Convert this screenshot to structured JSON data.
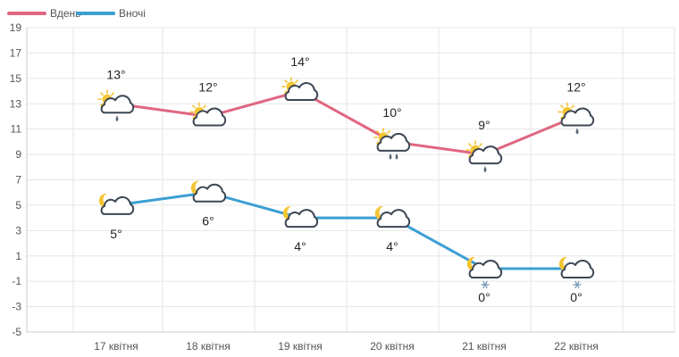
{
  "chart_data": {
    "type": "line",
    "categories": [
      "17 квітня",
      "18 квітня",
      "19 квітня",
      "20 квітня",
      "21 квітня",
      "22 квітня"
    ],
    "ylim": [
      -5,
      19
    ],
    "yticks": [
      "19",
      "17",
      "15",
      "13",
      "11",
      "9",
      "7",
      "5",
      "3",
      "1",
      "-1",
      "-3",
      "-5"
    ],
    "grid": true,
    "legend_position": "top-left",
    "series": [
      {
        "name": "Вдень",
        "color": "#e06680",
        "values": [
          13,
          12,
          14,
          10,
          9,
          12
        ],
        "labels": [
          "13°",
          "12°",
          "14°",
          "10°",
          "9°",
          "12°"
        ],
        "icons": [
          "sun-cloud-rain-icon",
          "sun-cloud-icon",
          "sun-cloud-icon",
          "sun-cloud-heavy-rain-icon",
          "sun-cloud-rain-icon",
          "sun-cloud-rain-icon"
        ]
      },
      {
        "name": "Вночі",
        "color": "#3d9fd3",
        "values": [
          5,
          6,
          4,
          4,
          0,
          0
        ],
        "labels": [
          "5°",
          "6°",
          "4°",
          "4°",
          "0°",
          "0°"
        ],
        "icons": [
          "moon-cloud-icon",
          "moon-cloud-icon",
          "moon-cloud-icon",
          "moon-cloud-icon",
          "moon-cloud-snow-icon",
          "moon-cloud-snow-icon"
        ]
      }
    ]
  }
}
